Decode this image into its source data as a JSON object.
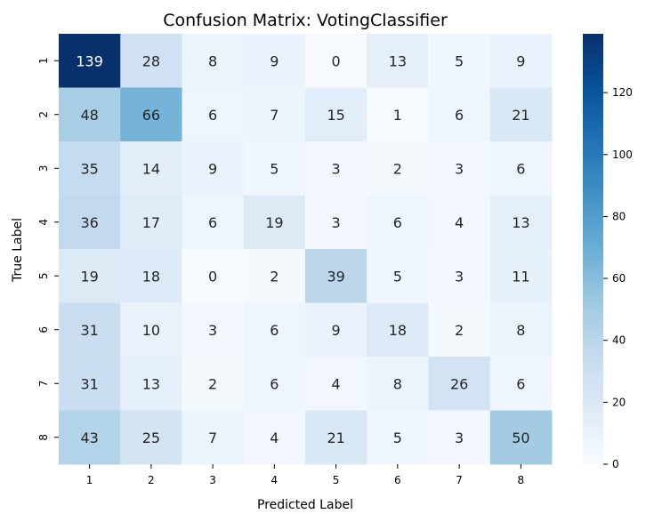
{
  "chart_data": {
    "type": "heatmap",
    "title": "Confusion Matrix: VotingClassifier",
    "xlabel": "Predicted Label",
    "ylabel": "True Label",
    "x_categories": [
      "1",
      "2",
      "3",
      "4",
      "5",
      "6",
      "7",
      "8"
    ],
    "y_categories": [
      "1",
      "2",
      "3",
      "4",
      "5",
      "6",
      "7",
      "8"
    ],
    "values": [
      [
        139,
        28,
        8,
        9,
        0,
        13,
        5,
        9
      ],
      [
        48,
        66,
        6,
        7,
        15,
        1,
        6,
        21
      ],
      [
        35,
        14,
        9,
        5,
        3,
        2,
        3,
        6
      ],
      [
        36,
        17,
        6,
        19,
        3,
        6,
        4,
        13
      ],
      [
        19,
        18,
        0,
        2,
        39,
        5,
        3,
        11
      ],
      [
        31,
        10,
        3,
        6,
        9,
        18,
        2,
        8
      ],
      [
        31,
        13,
        2,
        6,
        4,
        8,
        26,
        6
      ],
      [
        43,
        25,
        7,
        4,
        21,
        5,
        3,
        50
      ]
    ],
    "colorbar": {
      "colormap": "Blues",
      "vmin": 0,
      "vmax": 139,
      "ticks": [
        "0",
        "20",
        "40",
        "60",
        "80",
        "100",
        "120"
      ]
    },
    "annotations": true,
    "grid": false,
    "legend": "colorbar-right"
  }
}
